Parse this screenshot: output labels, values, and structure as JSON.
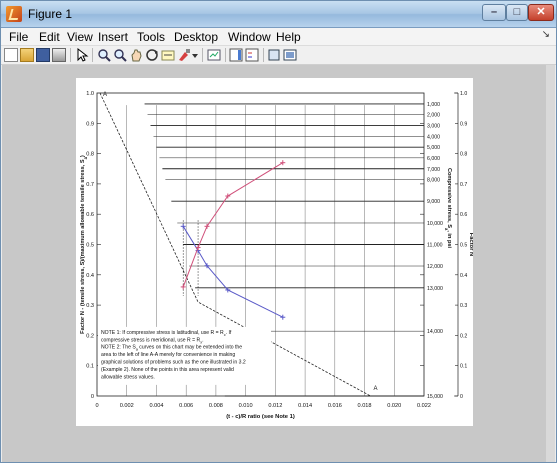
{
  "window": {
    "title": "Figure 1"
  },
  "menu": [
    "File",
    "Edit",
    "View",
    "Insert",
    "Tools",
    "Desktop",
    "Window",
    "Help"
  ],
  "toolbar_icons": [
    "new-figure-icon",
    "open-file-icon",
    "save-icon",
    "print-icon",
    "pointer-icon",
    "zoom-in-icon",
    "zoom-out-icon",
    "pan-icon",
    "rotate-3d-icon",
    "data-cursor-icon",
    "brush-icon",
    "link-icon",
    "colorbar-icon",
    "legend-icon",
    "hide-plot-tools-icon",
    "show-plot-tools-icon"
  ],
  "chart_data": {
    "type": "line",
    "title": "",
    "xlabel": "(t - c)/R ratio (see Note 1)",
    "ylabel_left": "Factor N - (tensile stress, S)/(maximum allowable tensile stress, S",
    "ylabel_left_sub": "a",
    "ylabel_left_end": ")",
    "ylabel_right_inner": "Compressive stress, S",
    "ylabel_right_inner_sub": "a",
    "ylabel_right_inner_end": ", in psi",
    "ylabel_right_outer": "Factor N",
    "xlim": [
      0,
      0.022
    ],
    "ylim": [
      0,
      1.0
    ],
    "x_ticks": [
      "0",
      "0.002",
      "0.004",
      "0.006",
      "0.008",
      "0.010",
      "0.012",
      "0.014",
      "0.016",
      "0.018",
      "0.020",
      "0.022"
    ],
    "y_ticks": [
      "0",
      "0.1",
      "0.2",
      "0.3",
      "0.4",
      "0.5",
      "0.6",
      "0.7",
      "0.8",
      "0.9",
      "1.0"
    ],
    "compressive_stress_ticks": [
      "1,000",
      "2,000",
      "3,000",
      "4,000",
      "5,000",
      "6,000",
      "7,000",
      "8,000",
      "9,000",
      "10,000",
      "11,000",
      "12,000",
      "13,000",
      "14,000",
      "15,000"
    ],
    "compressive_stress_values": [
      1000,
      2000,
      3000,
      4000,
      5000,
      6000,
      7000,
      8000,
      9000,
      10000,
      11000,
      12000,
      13000,
      14000,
      15000
    ],
    "stress_line_y": [
      0.964,
      0.929,
      0.893,
      0.857,
      0.821,
      0.786,
      0.75,
      0.714,
      0.643,
      0.571,
      0.5,
      0.429,
      0.357,
      0.214,
      0.0
    ],
    "stress_line_x_start": [
      0.0032,
      0.0034,
      0.0036,
      0.0038,
      0.004,
      0.0042,
      0.0044,
      0.0046,
      0.005,
      0.0054,
      0.0058,
      0.0062,
      0.0066,
      0.0074,
      0.0086
    ],
    "boundary_line_a": {
      "label_top": "A",
      "label_bottom": "A",
      "x": [
        0.0002,
        0.0068,
        0.0184
      ],
      "y": [
        1.0,
        0.31,
        0.0
      ]
    },
    "series": [
      {
        "color": "#5a5ac8",
        "x": [
          0.0058,
          0.0068,
          0.0074,
          0.0088,
          0.0125
        ],
        "y": [
          0.56,
          0.48,
          0.43,
          0.35,
          0.26
        ]
      },
      {
        "color": "#d0507a",
        "x": [
          0.0058,
          0.0068,
          0.0074,
          0.0088,
          0.0125
        ],
        "y": [
          0.36,
          0.49,
          0.56,
          0.66,
          0.77
        ]
      }
    ],
    "notes": [
      "NOTE 1:  If compressive stress is latitudinal, use R = R",
      "c",
      ". If",
      "compressive stress is meridional, use R = R",
      "x",
      ".",
      "NOTE 2:  The S",
      "a",
      " curves on this chart may be extended into the",
      "area to the left of line A-A merely for convenience in making",
      "graphical solutions of problems such as the one illustrated in 3.2",
      "(Example 2). None of the points in this area represent valid",
      "allowable stress values."
    ]
  }
}
